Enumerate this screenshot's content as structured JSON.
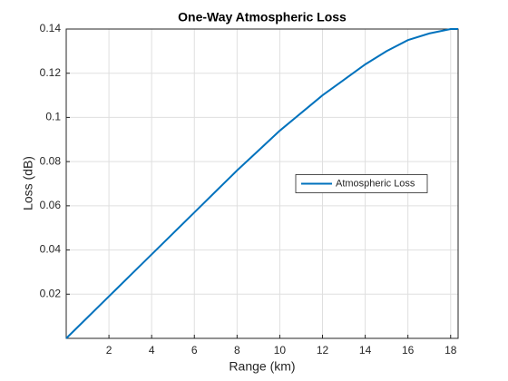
{
  "chart_data": {
    "type": "line",
    "title": "One-Way Atmospheric Loss",
    "x_label": "Range (km)",
    "y_label": "Loss (dB)",
    "x": [
      0,
      1,
      2,
      3,
      4,
      5,
      6,
      7,
      8,
      9,
      10,
      11,
      12,
      13,
      14,
      15,
      16,
      17,
      18,
      18.35
    ],
    "series": [
      {
        "name": "Atmospheric Loss",
        "color": "#0072bd",
        "values": [
          0,
          0.0095,
          0.019,
          0.0285,
          0.038,
          0.0475,
          0.057,
          0.0665,
          0.076,
          0.085,
          0.094,
          0.102,
          0.11,
          0.117,
          0.124,
          0.13,
          0.135,
          0.138,
          0.14,
          0.14
        ]
      }
    ],
    "xlim": [
      0,
      18.35
    ],
    "xticks": [
      2,
      4,
      6,
      8,
      10,
      12,
      14,
      16,
      18
    ],
    "ylim": [
      0,
      0.14
    ],
    "yticks": [
      0.02,
      0.04,
      0.06,
      0.08,
      0.1,
      0.12,
      0.14
    ],
    "grid": true,
    "legend_position": "east"
  }
}
